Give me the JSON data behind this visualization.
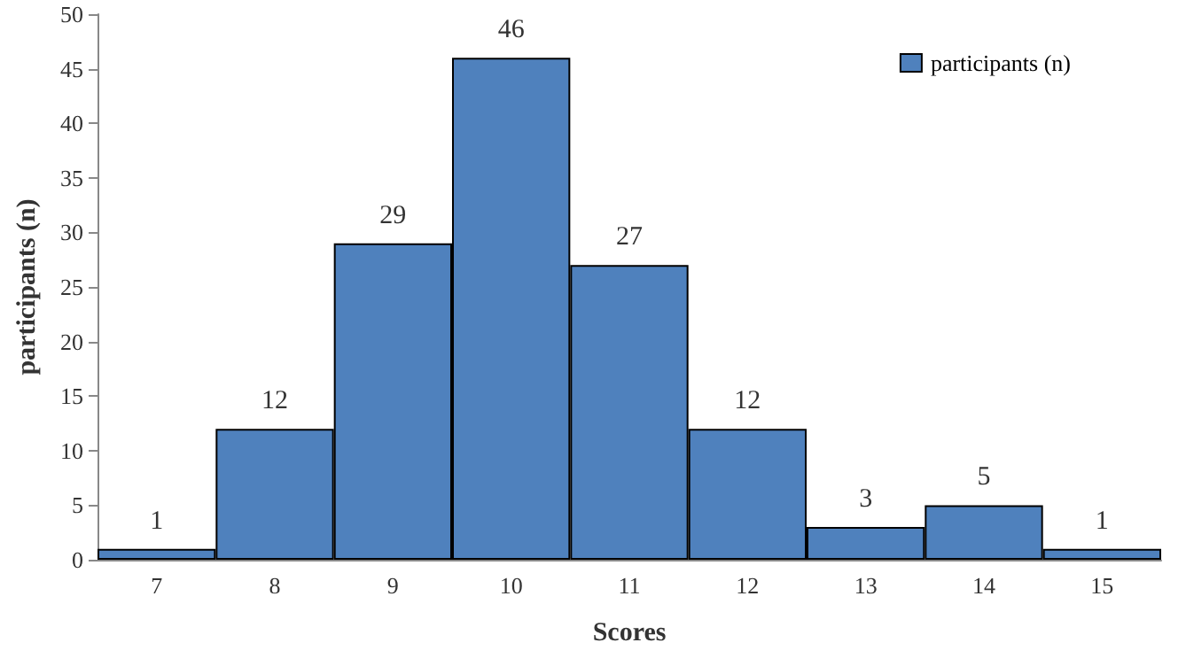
{
  "chart_data": {
    "type": "bar",
    "xlabel": "Scores",
    "ylabel": "participants (n)",
    "categories": [
      "7",
      "8",
      "9",
      "10",
      "11",
      "12",
      "13",
      "14",
      "15"
    ],
    "series": [
      {
        "name": "participants (n)",
        "color": "#4f81bd",
        "values": [
          1,
          12,
          29,
          46,
          27,
          12,
          3,
          5,
          1
        ]
      }
    ],
    "ylim": [
      0,
      50
    ],
    "yticks": [
      0,
      5,
      10,
      15,
      20,
      25,
      30,
      35,
      40,
      45,
      50
    ],
    "data_labels": true,
    "legend": "top right",
    "grid": false
  }
}
